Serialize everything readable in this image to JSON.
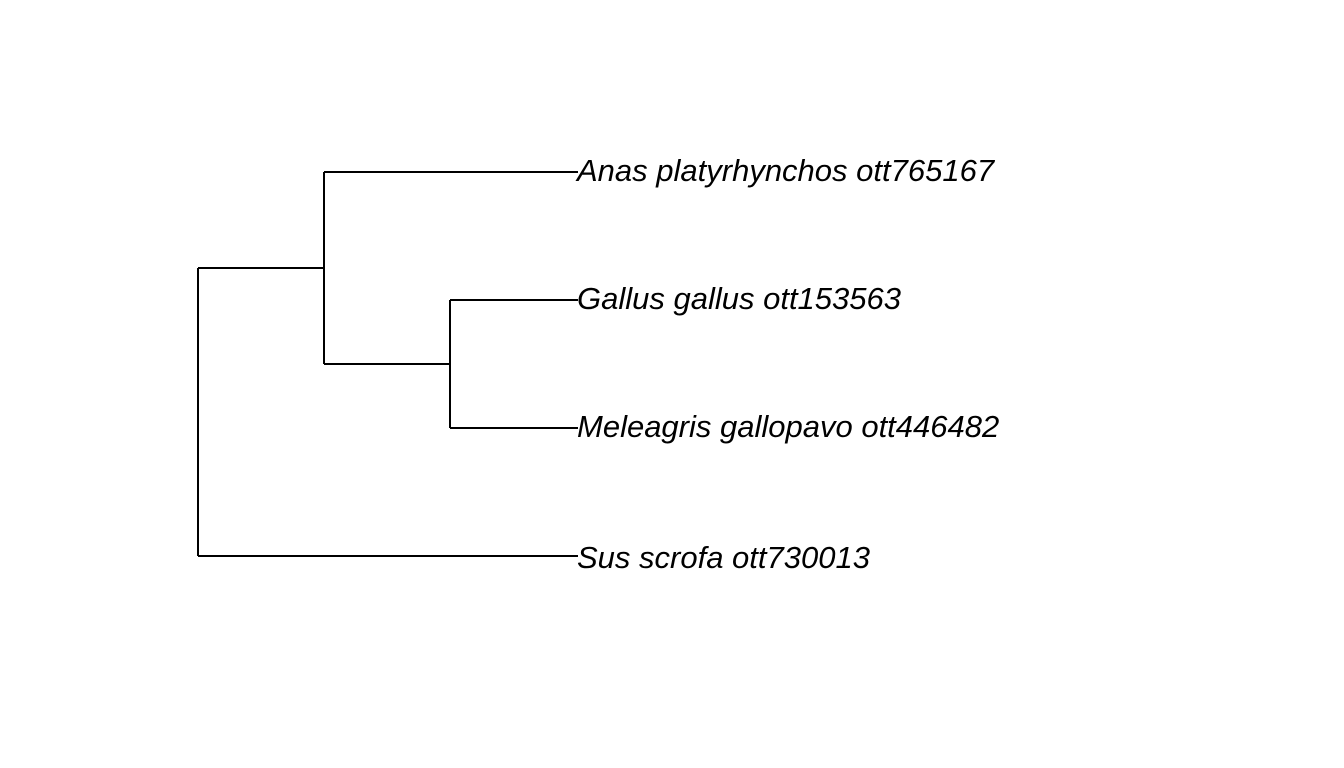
{
  "tree": {
    "tips": [
      {
        "id": "anas",
        "label": "Anas platyrhynchos ott765167"
      },
      {
        "id": "gallus",
        "label": "Gallus gallus ott153563"
      },
      {
        "id": "meleagris",
        "label": "Meleagris gallopavo ott446482"
      },
      {
        "id": "sus",
        "label": "Sus scrofa ott730013"
      }
    ],
    "topology": "((Anas platyrhynchos ott765167,(Gallus gallus ott153563,Meleagris gallopavo ott446482)),Sus scrofa ott730013)",
    "line_color": "#000000",
    "label_color": "#000000"
  }
}
